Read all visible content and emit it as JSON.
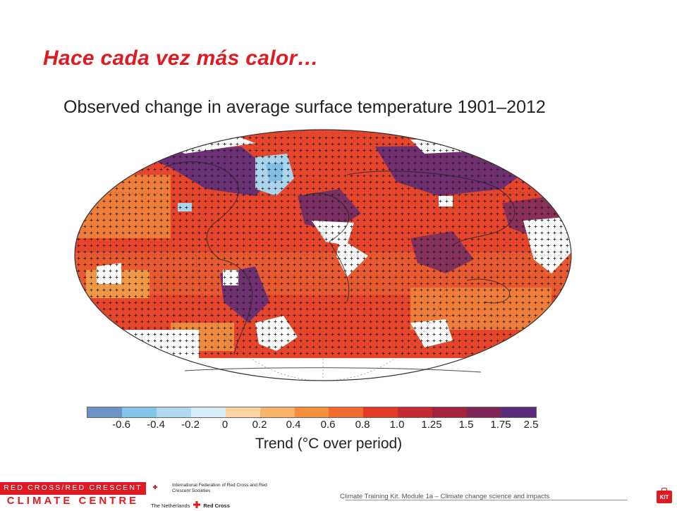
{
  "slide": {
    "title": "Hace cada vez más calor…"
  },
  "figure": {
    "title": "Observed change in average surface temperature 1901–2012",
    "colorbar_label": "Trend (°C over period)",
    "colorbar_colors": [
      "#6b93c4",
      "#86c5ea",
      "#aed8f0",
      "#d6ecf7",
      "#fdd4a4",
      "#f9b36b",
      "#f38f3d",
      "#ef6b2f",
      "#e33927",
      "#c32a31",
      "#a32240",
      "#7f2456",
      "#5c2c7c"
    ],
    "tick_labels": [
      "-0.6",
      "-0.4",
      "-0.2",
      "0",
      "0.2",
      "0.4",
      "0.6",
      "0.8",
      "1.0",
      "1.25",
      "1.5",
      "1.75",
      "2.5"
    ]
  },
  "footer": {
    "logo_line1": "RED CROSS/RED CRESCENT",
    "logo_line2": "CLIMATE CENTRE",
    "ifrc_name": "International Federation of Red Cross and Red Crescent Societies",
    "nl_text": "The Netherlands",
    "nl_rc": "Red Cross",
    "module_text": "Climate Training Kit. Module 1a – Climate change science and impacts",
    "kit_badge": "KIT"
  }
}
